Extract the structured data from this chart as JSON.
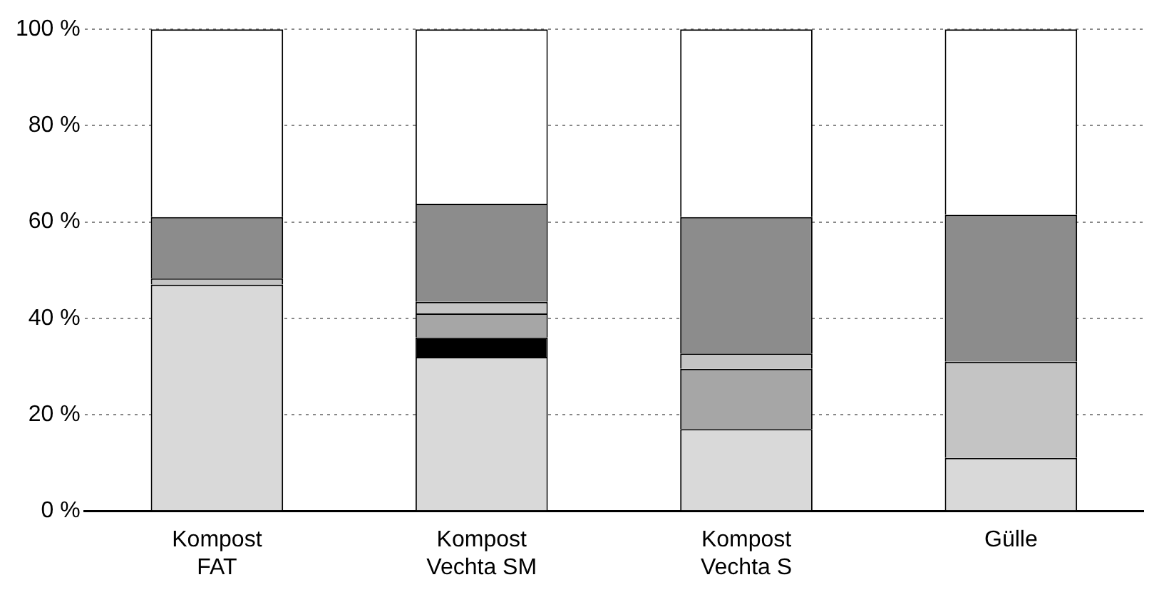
{
  "chart_data": {
    "type": "bar",
    "stacked": true,
    "categories": [
      "Kompost\nFAT",
      "Kompost\nVechta SM",
      "Kompost\nVechta S",
      "Gülle"
    ],
    "series": [
      {
        "color": "#d9d9d9",
        "values": [
          47,
          32,
          17,
          11
        ]
      },
      {
        "color": "#000000",
        "values": [
          null,
          4,
          null,
          null
        ]
      },
      {
        "color": "#a6a6a6",
        "values": [
          null,
          5,
          12.5,
          null
        ]
      },
      {
        "color": "#c4c4c4",
        "values": [
          1.3,
          2.4,
          3.2,
          20
        ]
      },
      {
        "color": "#8c8c8c",
        "values": [
          12.7,
          20.4,
          28.3,
          30.5
        ]
      },
      {
        "color": "#ffffff",
        "values": [
          39,
          36.2,
          39,
          38.5
        ]
      }
    ],
    "ylim": [
      0,
      100
    ],
    "yticks": [
      {
        "value": 0,
        "label": "0 %"
      },
      {
        "value": 20,
        "label": "20 %"
      },
      {
        "value": 40,
        "label": "40 %"
      },
      {
        "value": 60,
        "label": "60 %"
      },
      {
        "value": 80,
        "label": "80 %"
      },
      {
        "value": 100,
        "label": "100 %"
      }
    ],
    "grid": "y",
    "legend": false
  }
}
